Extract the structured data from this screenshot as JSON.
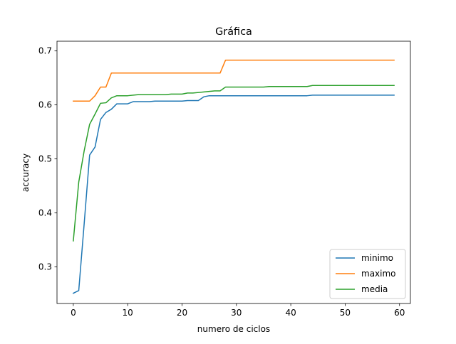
{
  "chart_data": {
    "type": "line",
    "title": "Gráfica",
    "xlabel": "numero de ciclos",
    "ylabel": "accuracy",
    "xlim": [
      -3,
      62
    ],
    "ylim": [
      0.232,
      0.718
    ],
    "xticks": [
      0,
      10,
      20,
      30,
      40,
      50,
      60
    ],
    "yticks": [
      0.3,
      0.4,
      0.5,
      0.6,
      0.7
    ],
    "legend_position": "lower right",
    "grid": false,
    "series": [
      {
        "name": "minimo",
        "color": "#1f77b4",
        "x": [
          0,
          1,
          2,
          3,
          4,
          5,
          6,
          7,
          8,
          9,
          10,
          11,
          12,
          13,
          14,
          15,
          16,
          17,
          18,
          19,
          20,
          21,
          22,
          23,
          24,
          25,
          26,
          27,
          28,
          29,
          30,
          31,
          32,
          33,
          34,
          35,
          36,
          37,
          38,
          39,
          40,
          41,
          42,
          43,
          44,
          45,
          46,
          47,
          48,
          49,
          50,
          51,
          52,
          53,
          54,
          55,
          56,
          57,
          58,
          59
        ],
        "values": [
          0.251,
          0.256,
          0.38,
          0.507,
          0.522,
          0.573,
          0.586,
          0.592,
          0.602,
          0.602,
          0.602,
          0.606,
          0.606,
          0.606,
          0.606,
          0.607,
          0.607,
          0.607,
          0.607,
          0.607,
          0.607,
          0.608,
          0.608,
          0.608,
          0.615,
          0.617,
          0.617,
          0.617,
          0.617,
          0.617,
          0.617,
          0.617,
          0.617,
          0.617,
          0.617,
          0.617,
          0.617,
          0.617,
          0.617,
          0.617,
          0.617,
          0.617,
          0.617,
          0.617,
          0.618,
          0.618,
          0.618,
          0.618,
          0.618,
          0.618,
          0.618,
          0.618,
          0.618,
          0.618,
          0.618,
          0.618,
          0.618,
          0.618,
          0.618,
          0.618
        ]
      },
      {
        "name": "maximo",
        "color": "#ff7f0e",
        "x": [
          0,
          1,
          2,
          3,
          4,
          5,
          6,
          7,
          8,
          9,
          10,
          11,
          12,
          13,
          14,
          15,
          16,
          17,
          18,
          19,
          20,
          21,
          22,
          23,
          24,
          25,
          26,
          27,
          28,
          29,
          30,
          31,
          32,
          33,
          34,
          35,
          36,
          37,
          38,
          39,
          40,
          41,
          42,
          43,
          44,
          45,
          46,
          47,
          48,
          49,
          50,
          51,
          52,
          53,
          54,
          55,
          56,
          57,
          58,
          59
        ],
        "values": [
          0.607,
          0.607,
          0.607,
          0.607,
          0.617,
          0.633,
          0.633,
          0.659,
          0.659,
          0.659,
          0.659,
          0.659,
          0.659,
          0.659,
          0.659,
          0.659,
          0.659,
          0.659,
          0.659,
          0.659,
          0.659,
          0.659,
          0.659,
          0.659,
          0.659,
          0.659,
          0.659,
          0.659,
          0.683,
          0.683,
          0.683,
          0.683,
          0.683,
          0.683,
          0.683,
          0.683,
          0.683,
          0.683,
          0.683,
          0.683,
          0.683,
          0.683,
          0.683,
          0.683,
          0.683,
          0.683,
          0.683,
          0.683,
          0.683,
          0.683,
          0.683,
          0.683,
          0.683,
          0.683,
          0.683,
          0.683,
          0.683,
          0.683,
          0.683,
          0.683
        ]
      },
      {
        "name": "media",
        "color": "#2ca02c",
        "x": [
          0,
          1,
          2,
          3,
          4,
          5,
          6,
          7,
          8,
          9,
          10,
          11,
          12,
          13,
          14,
          15,
          16,
          17,
          18,
          19,
          20,
          21,
          22,
          23,
          24,
          25,
          26,
          27,
          28,
          29,
          30,
          31,
          32,
          33,
          34,
          35,
          36,
          37,
          38,
          39,
          40,
          41,
          42,
          43,
          44,
          45,
          46,
          47,
          48,
          49,
          50,
          51,
          52,
          53,
          54,
          55,
          56,
          57,
          58,
          59
        ],
        "values": [
          0.348,
          0.457,
          0.515,
          0.564,
          0.583,
          0.603,
          0.604,
          0.613,
          0.617,
          0.617,
          0.617,
          0.618,
          0.619,
          0.619,
          0.619,
          0.619,
          0.619,
          0.619,
          0.62,
          0.62,
          0.62,
          0.622,
          0.622,
          0.623,
          0.624,
          0.625,
          0.626,
          0.626,
          0.633,
          0.633,
          0.633,
          0.633,
          0.633,
          0.633,
          0.633,
          0.633,
          0.634,
          0.634,
          0.634,
          0.634,
          0.634,
          0.634,
          0.634,
          0.634,
          0.636,
          0.636,
          0.636,
          0.636,
          0.636,
          0.636,
          0.636,
          0.636,
          0.636,
          0.636,
          0.636,
          0.636,
          0.636,
          0.636,
          0.636,
          0.636
        ]
      }
    ]
  }
}
